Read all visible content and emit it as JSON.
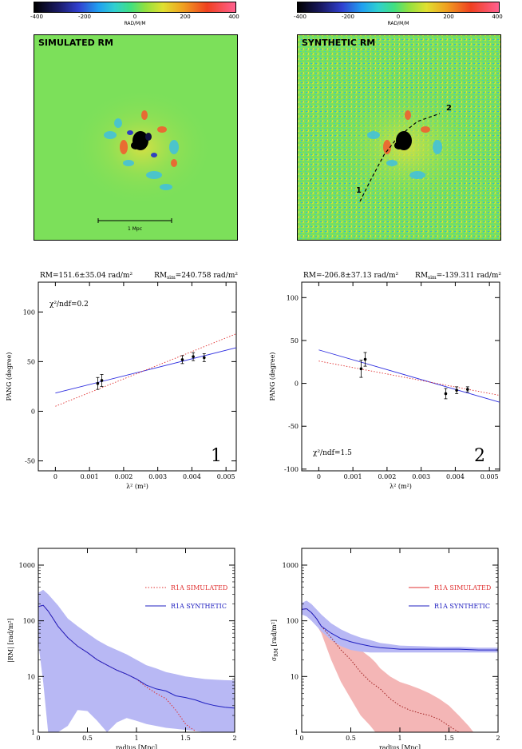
{
  "colorbars": [
    {
      "ticks": [
        "-400",
        "-200",
        "0",
        "200",
        "400"
      ],
      "label": "RAD/M/M"
    },
    {
      "ticks": [
        "-400",
        "-200",
        "0",
        "200",
        "400"
      ],
      "label": "RAD/M/M"
    }
  ],
  "maps": [
    {
      "title": "SIMULATED RM",
      "scale_label": "1 Mpc"
    },
    {
      "title": "SYNTHETIC RM",
      "markers": [
        "1",
        "2"
      ]
    }
  ],
  "chart_data": [
    {
      "type": "scatter",
      "header_left": "RM=151.6±35.04 rad/m²",
      "header_right_main": "RM",
      "header_right_sub": "sim",
      "header_right_rest": "=240.758 rad/m²",
      "annotation": "χ²/ndf=0.2",
      "panel_number": "1",
      "xlabel": "λ² (m²)",
      "ylabel": "PANG (degree)",
      "xlim": [
        -0.0005,
        0.0053
      ],
      "ylim": [
        -60,
        130
      ],
      "xticks": [
        0,
        0.001,
        0.002,
        0.003,
        0.004,
        0.005
      ],
      "xtick_labels": [
        "0",
        "0.001",
        "0.002",
        "0.003",
        "0.004",
        "0.005"
      ],
      "yticks": [
        -50,
        0,
        50,
        100
      ],
      "ytick_labels": [
        "-50",
        "0",
        "50",
        "100"
      ],
      "points": [
        {
          "x": 0.00124,
          "y": 28,
          "err": 6
        },
        {
          "x": 0.00136,
          "y": 31,
          "err": 6
        },
        {
          "x": 0.00372,
          "y": 52,
          "err": 4
        },
        {
          "x": 0.00404,
          "y": 55,
          "err": 4
        },
        {
          "x": 0.00436,
          "y": 54,
          "err": 4
        }
      ],
      "lines": [
        {
          "style": "solid",
          "color": "#3030e0",
          "x": [
            0,
            0.0053
          ],
          "y": [
            18.3,
            64
          ]
        },
        {
          "style": "dotted",
          "color": "#e03030",
          "x": [
            0,
            0.0053
          ],
          "y": [
            5,
            78
          ]
        }
      ]
    },
    {
      "type": "scatter",
      "header_left": "RM=-206.8±37.13 rad/m²",
      "header_right_main": "RM",
      "header_right_sub": "sim",
      "header_right_rest": "=-139.311 rad/m²",
      "annotation": "χ²/ndf=1.5",
      "panel_number": "2",
      "xlabel": "λ² (m²)",
      "ylabel": "PANG (degree)",
      "xlim": [
        -0.0005,
        0.0053
      ],
      "ylim": [
        -102,
        118
      ],
      "xticks": [
        0,
        0.001,
        0.002,
        0.003,
        0.004,
        0.005
      ],
      "xtick_labels": [
        "0",
        "0.001",
        "0.002",
        "0.003",
        "0.004",
        "0.005"
      ],
      "yticks": [
        -100,
        -50,
        0,
        50,
        100
      ],
      "ytick_labels": [
        "-100",
        "-50",
        "0",
        "50",
        "100"
      ],
      "points": [
        {
          "x": 0.00124,
          "y": 17,
          "err": 10
        },
        {
          "x": 0.00136,
          "y": 28,
          "err": 8
        },
        {
          "x": 0.00372,
          "y": -12,
          "err": 6
        },
        {
          "x": 0.00404,
          "y": -8,
          "err": 4
        },
        {
          "x": 0.00436,
          "y": -7,
          "err": 3
        }
      ],
      "lines": [
        {
          "style": "solid",
          "color": "#3030e0",
          "x": [
            0,
            0.0053
          ],
          "y": [
            39,
            -22
          ]
        },
        {
          "style": "dotted",
          "color": "#e03030",
          "x": [
            0,
            0.0053
          ],
          "y": [
            26,
            -14
          ]
        }
      ]
    },
    {
      "type": "line",
      "xlabel": "radius [Mpc]",
      "ylabel": "|RM| [rad/m²]",
      "xlim": [
        0,
        2
      ],
      "ylim": [
        1,
        2000
      ],
      "yscale": "log",
      "xticks": [
        0,
        0.5,
        1,
        1.5,
        2
      ],
      "xtick_labels": [
        "0",
        "0.5",
        "1",
        "1.5",
        "2"
      ],
      "yticks": [
        1,
        10,
        100,
        1000
      ],
      "ytick_labels": [
        "1",
        "10",
        "100",
        "1000"
      ],
      "legend": [
        {
          "label": "R1A SIMULATED",
          "style": "dotted",
          "color": "#e03030"
        },
        {
          "label": "R1A SYNTHETIC",
          "style": "solid",
          "color": "#2020c0"
        }
      ],
      "series": [
        {
          "name": "R1A SIMULATED",
          "style": "dotted",
          "color": "#e03030",
          "x": [
            0,
            0.05,
            0.1,
            0.15,
            0.2,
            0.3,
            0.4,
            0.5,
            0.6,
            0.7,
            0.8,
            0.9,
            1.0,
            1.1,
            1.2,
            1.3,
            1.4,
            1.5,
            1.55,
            1.6
          ],
          "y": [
            180,
            190,
            150,
            110,
            80,
            50,
            35,
            27,
            20,
            16,
            13,
            11,
            9,
            6.5,
            5,
            4,
            2.5,
            1.4,
            1.2,
            1.05
          ]
        },
        {
          "name": "R1A SYNTHETIC",
          "style": "solid",
          "color": "#2020c0",
          "x": [
            0,
            0.05,
            0.1,
            0.15,
            0.2,
            0.3,
            0.4,
            0.5,
            0.6,
            0.7,
            0.8,
            0.9,
            1.0,
            1.1,
            1.2,
            1.3,
            1.4,
            1.5,
            1.6,
            1.7,
            1.8,
            1.9,
            2.0
          ],
          "y": [
            180,
            190,
            150,
            110,
            80,
            50,
            35,
            27,
            20,
            16,
            13,
            11,
            9,
            7,
            6,
            5.5,
            4.5,
            4.2,
            3.8,
            3.3,
            3.0,
            2.8,
            2.7
          ]
        }
      ],
      "band": {
        "color": "#b8b8f4",
        "x": [
          0,
          0.05,
          0.1,
          0.2,
          0.3,
          0.4,
          0.5,
          0.6,
          0.7,
          0.8,
          0.9,
          1.0,
          1.1,
          1.2,
          1.3,
          1.4,
          1.5,
          1.6,
          1.7,
          1.8,
          1.9,
          2.0
        ],
        "upper": [
          320,
          360,
          300,
          190,
          110,
          80,
          60,
          45,
          36,
          30,
          25,
          20,
          16,
          14,
          12,
          11,
          10,
          9.5,
          9,
          8.8,
          8.6,
          8.5
        ],
        "lower": [
          40,
          8,
          1,
          1,
          1.3,
          2.5,
          2.4,
          1.6,
          1,
          1.5,
          1.8,
          1.6,
          1.4,
          1.3,
          1.2,
          1.15,
          1.1,
          1.05,
          1,
          1,
          1,
          1
        ]
      }
    },
    {
      "type": "line",
      "xlabel": "radius [Mpc]",
      "ylabel_main": "σ",
      "ylabel_sub": "RM",
      "ylabel_rest": " [rad/m²]",
      "xlim": [
        0,
        2
      ],
      "ylim": [
        1,
        2000
      ],
      "yscale": "log",
      "xticks": [
        0,
        0.5,
        1,
        1.5,
        2
      ],
      "xtick_labels": [
        "0",
        "0.5",
        "1",
        "1.5",
        "2"
      ],
      "yticks": [
        1,
        10,
        100,
        1000
      ],
      "ytick_labels": [
        "1",
        "10",
        "100",
        "1000"
      ],
      "legend": [
        {
          "label": "R1A SIMULATED",
          "style": "solid",
          "color": "#e03030"
        },
        {
          "label": "R1A SYNTHETIC",
          "style": "solid",
          "color": "#2020c0"
        }
      ],
      "series": [
        {
          "name": "R1A SIMULATED",
          "style": "dotted",
          "color": "#a02020",
          "x": [
            0,
            0.05,
            0.1,
            0.15,
            0.2,
            0.3,
            0.4,
            0.5,
            0.6,
            0.7,
            0.8,
            0.9,
            1.0,
            1.1,
            1.2,
            1.3,
            1.4,
            1.5,
            1.6
          ],
          "y": [
            160,
            165,
            140,
            110,
            80,
            50,
            30,
            20,
            12,
            8,
            6,
            4,
            3,
            2.5,
            2.2,
            2,
            1.7,
            1.3,
            1.0
          ]
        },
        {
          "name": "R1A SYNTHETIC",
          "style": "solid",
          "color": "#2020c0",
          "x": [
            0,
            0.05,
            0.1,
            0.15,
            0.2,
            0.3,
            0.4,
            0.5,
            0.6,
            0.7,
            0.8,
            0.9,
            1.0,
            1.2,
            1.4,
            1.6,
            1.8,
            2.0
          ],
          "y": [
            160,
            165,
            140,
            110,
            80,
            60,
            48,
            42,
            38,
            35,
            33,
            32,
            31,
            31,
            31,
            31,
            30,
            30
          ]
        }
      ],
      "bands": [
        {
          "color": "#f4b6b6",
          "x": [
            0,
            0.1,
            0.2,
            0.3,
            0.4,
            0.5,
            0.6,
            0.7,
            0.75,
            0.8,
            0.9,
            1.0,
            1.1,
            1.2,
            1.3,
            1.4,
            1.5,
            1.6,
            1.7,
            1.75
          ],
          "upper": [
            170,
            160,
            110,
            70,
            50,
            40,
            30,
            22,
            18,
            14,
            10,
            8,
            7,
            6,
            5,
            4,
            3,
            2,
            1.3,
            1
          ],
          "lower": [
            140,
            120,
            60,
            20,
            8,
            4,
            2,
            1.3,
            1,
            1,
            1,
            1,
            1,
            1,
            1,
            1,
            1,
            1,
            1,
            1
          ]
        },
        {
          "color": "#b8b8f4",
          "x": [
            0,
            0.05,
            0.1,
            0.2,
            0.3,
            0.4,
            0.5,
            0.6,
            0.7,
            0.8,
            0.9,
            1.0,
            1.2,
            1.4,
            1.6,
            1.8,
            2.0
          ],
          "upper": [
            210,
            230,
            200,
            130,
            90,
            70,
            58,
            50,
            45,
            40,
            38,
            36,
            35,
            34,
            34,
            33,
            33
          ],
          "lower": [
            130,
            120,
            100,
            65,
            45,
            35,
            30,
            28,
            27,
            27,
            27,
            27,
            27,
            27,
            27,
            27,
            27
          ]
        }
      ]
    }
  ]
}
